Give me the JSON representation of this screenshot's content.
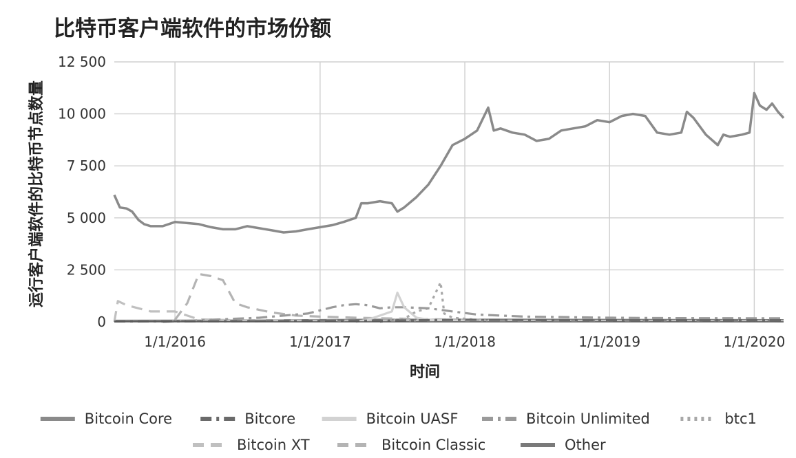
{
  "chart_data": {
    "type": "line",
    "title": "比特币客户端软件的市场份额",
    "xlabel": "时间",
    "ylabel": "运行客户端软件的比特币节点数量",
    "x_range": [
      "2015-08-01",
      "2020-03-15"
    ],
    "ylim": [
      0,
      12500
    ],
    "y_ticks": [
      0,
      2500,
      5000,
      7500,
      10000,
      12500
    ],
    "y_tick_labels": [
      "0",
      "2 500",
      "5 000",
      "7 500",
      "10 000",
      "12 500"
    ],
    "x_ticks": [
      "2016-01-01",
      "2017-01-01",
      "2018-01-01",
      "2019-01-01",
      "2020-01-01"
    ],
    "x_tick_labels": [
      "1/1/2016",
      "1/1/2017",
      "1/1/2018",
      "1/1/2019",
      "1/1/2020"
    ],
    "grid": true,
    "legend_position": "bottom",
    "series": [
      {
        "name": "Bitcoin Core",
        "color": "#8a8a8a",
        "dash": "solid",
        "points": [
          [
            "2015-08-01",
            6100
          ],
          [
            "2015-08-15",
            5500
          ],
          [
            "2015-09-01",
            5450
          ],
          [
            "2015-09-15",
            5300
          ],
          [
            "2015-10-01",
            4900
          ],
          [
            "2015-10-15",
            4700
          ],
          [
            "2015-11-01",
            4600
          ],
          [
            "2015-12-01",
            4600
          ],
          [
            "2016-01-01",
            4800
          ],
          [
            "2016-02-01",
            4750
          ],
          [
            "2016-03-01",
            4700
          ],
          [
            "2016-04-01",
            4550
          ],
          [
            "2016-05-01",
            4450
          ],
          [
            "2016-06-01",
            4450
          ],
          [
            "2016-07-01",
            4600
          ],
          [
            "2016-08-01",
            4500
          ],
          [
            "2016-09-01",
            4400
          ],
          [
            "2016-10-01",
            4300
          ],
          [
            "2016-11-01",
            4350
          ],
          [
            "2016-12-01",
            4450
          ],
          [
            "2017-01-01",
            4550
          ],
          [
            "2017-02-01",
            4650
          ],
          [
            "2017-03-01",
            4800
          ],
          [
            "2017-04-01",
            5000
          ],
          [
            "2017-04-15",
            5700
          ],
          [
            "2017-05-01",
            5700
          ],
          [
            "2017-06-01",
            5800
          ],
          [
            "2017-07-01",
            5700
          ],
          [
            "2017-07-15",
            5300
          ],
          [
            "2017-08-01",
            5500
          ],
          [
            "2017-09-01",
            6000
          ],
          [
            "2017-10-01",
            6600
          ],
          [
            "2017-11-01",
            7500
          ],
          [
            "2017-12-01",
            8500
          ],
          [
            "2018-01-01",
            8800
          ],
          [
            "2018-02-01",
            9200
          ],
          [
            "2018-03-01",
            10300
          ],
          [
            "2018-03-15",
            9200
          ],
          [
            "2018-04-01",
            9300
          ],
          [
            "2018-05-01",
            9100
          ],
          [
            "2018-06-01",
            9000
          ],
          [
            "2018-07-01",
            8700
          ],
          [
            "2018-08-01",
            8800
          ],
          [
            "2018-09-01",
            9200
          ],
          [
            "2018-10-01",
            9300
          ],
          [
            "2018-11-01",
            9400
          ],
          [
            "2018-12-01",
            9700
          ],
          [
            "2019-01-01",
            9600
          ],
          [
            "2019-02-01",
            9900
          ],
          [
            "2019-03-01",
            10000
          ],
          [
            "2019-04-01",
            9900
          ],
          [
            "2019-05-01",
            9100
          ],
          [
            "2019-06-01",
            9000
          ],
          [
            "2019-07-01",
            9100
          ],
          [
            "2019-07-15",
            10100
          ],
          [
            "2019-08-01",
            9800
          ],
          [
            "2019-09-01",
            9000
          ],
          [
            "2019-10-01",
            8500
          ],
          [
            "2019-10-15",
            9000
          ],
          [
            "2019-11-01",
            8900
          ],
          [
            "2019-12-01",
            9000
          ],
          [
            "2019-12-20",
            9100
          ],
          [
            "2020-01-01",
            11000
          ],
          [
            "2020-01-15",
            10400
          ],
          [
            "2020-02-01",
            10200
          ],
          [
            "2020-02-15",
            10500
          ],
          [
            "2020-03-01",
            10100
          ],
          [
            "2020-03-15",
            9800
          ]
        ]
      },
      {
        "name": "Bitcore",
        "color": "#6a6a6a",
        "dash": "dash-dot",
        "points": [
          [
            "2015-08-01",
            20
          ],
          [
            "2016-06-01",
            30
          ],
          [
            "2017-06-01",
            60
          ],
          [
            "2018-01-01",
            100
          ],
          [
            "2019-01-01",
            80
          ],
          [
            "2020-03-15",
            80
          ]
        ]
      },
      {
        "name": "Bitcoin UASF",
        "color": "#d2d2d2",
        "dash": "solid",
        "points": [
          [
            "2017-04-01",
            0
          ],
          [
            "2017-05-01",
            100
          ],
          [
            "2017-06-01",
            300
          ],
          [
            "2017-07-01",
            500
          ],
          [
            "2017-07-15",
            1400
          ],
          [
            "2017-08-01",
            700
          ],
          [
            "2017-09-01",
            200
          ],
          [
            "2017-10-01",
            100
          ],
          [
            "2018-01-01",
            30
          ]
        ]
      },
      {
        "name": "Bitcoin Unlimited",
        "color": "#9a9a9a",
        "dash": "dash-dot",
        "points": [
          [
            "2015-12-01",
            0
          ],
          [
            "2016-04-01",
            100
          ],
          [
            "2016-08-01",
            200
          ],
          [
            "2016-12-01",
            400
          ],
          [
            "2017-02-01",
            700
          ],
          [
            "2017-03-01",
            800
          ],
          [
            "2017-04-01",
            850
          ],
          [
            "2017-05-01",
            800
          ],
          [
            "2017-06-01",
            650
          ],
          [
            "2017-07-01",
            700
          ],
          [
            "2017-08-01",
            700
          ],
          [
            "2017-10-01",
            650
          ],
          [
            "2017-12-01",
            500
          ],
          [
            "2018-02-01",
            350
          ],
          [
            "2018-06-01",
            250
          ],
          [
            "2019-01-01",
            200
          ],
          [
            "2019-06-01",
            180
          ],
          [
            "2020-03-15",
            170
          ]
        ]
      },
      {
        "name": "btc1",
        "color": "#a8a8a8",
        "dash": "dot",
        "points": [
          [
            "2017-06-01",
            0
          ],
          [
            "2017-08-01",
            150
          ],
          [
            "2017-09-01",
            500
          ],
          [
            "2017-10-01",
            650
          ],
          [
            "2017-11-01",
            1900
          ],
          [
            "2017-11-10",
            400
          ],
          [
            "2017-12-01",
            200
          ],
          [
            "2018-01-01",
            150
          ],
          [
            "2018-03-01",
            50
          ]
        ]
      },
      {
        "name": "Bitcoin XT",
        "color": "#c0c0c0",
        "dash": "dash",
        "points": [
          [
            "2015-08-01",
            0
          ],
          [
            "2015-08-10",
            1000
          ],
          [
            "2015-09-01",
            800
          ],
          [
            "2015-10-01",
            650
          ],
          [
            "2015-11-01",
            500
          ],
          [
            "2016-01-01",
            500
          ],
          [
            "2016-02-01",
            300
          ],
          [
            "2016-03-01",
            120
          ],
          [
            "2016-06-01",
            80
          ],
          [
            "2017-01-01",
            60
          ],
          [
            "2018-01-01",
            50
          ],
          [
            "2020-03-15",
            40
          ]
        ]
      },
      {
        "name": "Bitcoin Classic",
        "color": "#b4b4b4",
        "dash": "dash",
        "points": [
          [
            "2016-01-01",
            100
          ],
          [
            "2016-02-01",
            900
          ],
          [
            "2016-03-01",
            2300
          ],
          [
            "2016-04-01",
            2200
          ],
          [
            "2016-05-01",
            2000
          ],
          [
            "2016-06-01",
            900
          ],
          [
            "2016-07-01",
            700
          ],
          [
            "2016-09-01",
            450
          ],
          [
            "2016-11-01",
            300
          ],
          [
            "2017-01-01",
            250
          ],
          [
            "2017-04-01",
            200
          ],
          [
            "2017-08-01",
            150
          ],
          [
            "2018-01-01",
            100
          ],
          [
            "2018-06-01",
            50
          ],
          [
            "2020-03-15",
            30
          ]
        ]
      },
      {
        "name": "Other",
        "color": "#7a7a7a",
        "dash": "solid",
        "points": [
          [
            "2015-08-01",
            50
          ],
          [
            "2016-06-01",
            60
          ],
          [
            "2017-06-01",
            100
          ],
          [
            "2018-06-01",
            100
          ],
          [
            "2019-06-01",
            90
          ],
          [
            "2020-03-15",
            80
          ]
        ]
      }
    ]
  }
}
